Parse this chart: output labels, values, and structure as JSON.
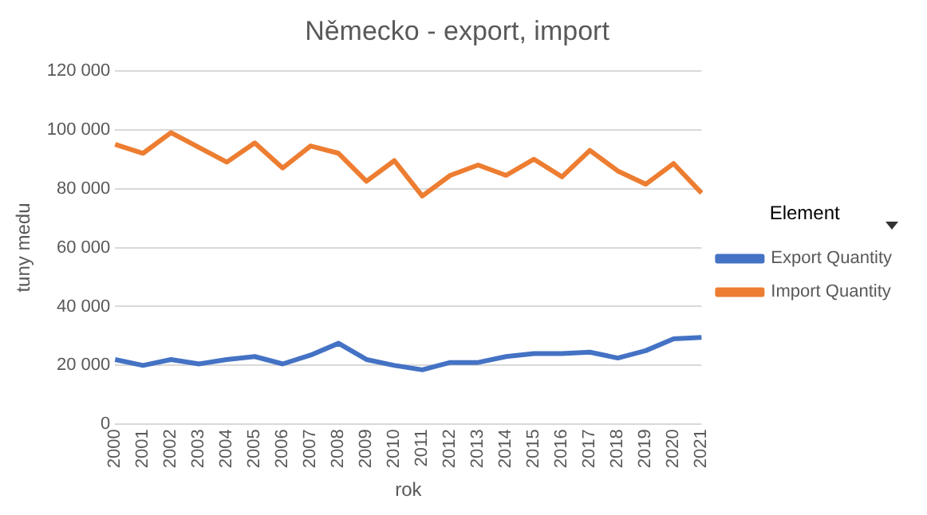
{
  "chart_data": {
    "type": "line",
    "title": "Německo - export, import",
    "xlabel": "rok",
    "ylabel": "tuny medu",
    "legend_title": "Element",
    "categories": [
      "2000",
      "2001",
      "2002",
      "2003",
      "2004",
      "2005",
      "2006",
      "2007",
      "2008",
      "2009",
      "2010",
      "2011",
      "2012",
      "2013",
      "2014",
      "2015",
      "2016",
      "2017",
      "2018",
      "2019",
      "2020",
      "2021"
    ],
    "series": [
      {
        "name": "Export Quantity",
        "color": "#4472c4",
        "values": [
          22000,
          20000,
          22000,
          20500,
          22000,
          23000,
          20500,
          23500,
          27500,
          22000,
          20000,
          18500,
          21000,
          21000,
          23000,
          24000,
          24000,
          24500,
          22500,
          25000,
          29000,
          29500
        ]
      },
      {
        "name": "Import Quantity",
        "color": "#ed7d31",
        "values": [
          95000,
          92000,
          99000,
          94000,
          89000,
          95500,
          87000,
          94500,
          92000,
          82500,
          89500,
          77500,
          84500,
          88000,
          84500,
          90000,
          84000,
          93000,
          86000,
          81500,
          88500,
          78500
        ]
      }
    ],
    "ylim": [
      0,
      120000
    ],
    "yticks": [
      0,
      {
        "value": 20000,
        "label": "20 000"
      },
      {
        "value": 40000,
        "label": "40 000"
      },
      {
        "value": 60000,
        "label": "60 000"
      },
      {
        "value": 80000,
        "label": "80 000"
      },
      {
        "value": 100000,
        "label": "100 000"
      },
      {
        "value": 120000,
        "label": "120 000"
      }
    ],
    "grid": "y",
    "legend": "right",
    "marker": "none",
    "line_style": "solid"
  }
}
